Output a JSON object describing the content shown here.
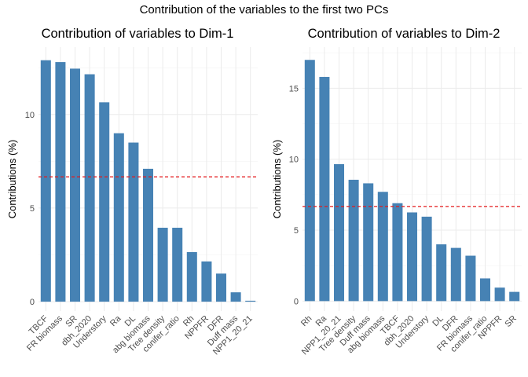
{
  "figure": {
    "suptitle": "Contribution of the variables to the first two PCs"
  },
  "chart_data": [
    {
      "type": "bar",
      "title": "Contribution of variables to Dim-1",
      "xlabel": "",
      "ylabel": "Contributions (%)",
      "categories": [
        "TBCF",
        "FR biomass",
        "SR",
        "dbh_2020",
        "Understory",
        "Ra",
        "DL",
        "abg biomass",
        "Tree density",
        "conifer_ratio",
        "Rh",
        "NPPFR",
        "DFR",
        "Duff mass",
        "NPP1_20_21"
      ],
      "values": [
        12.9,
        12.8,
        12.45,
        12.15,
        10.65,
        9.0,
        8.5,
        7.1,
        3.95,
        3.95,
        2.65,
        2.15,
        1.5,
        0.5,
        0.05
      ],
      "reference_line": 6.67,
      "ylim": [
        -0.5,
        13.6
      ],
      "yticks": [
        0,
        5,
        10
      ],
      "grid": true,
      "colors": {
        "bar": "#4682b4",
        "reference_line": "#e41a1c",
        "grid": "#ebebeb"
      }
    },
    {
      "type": "bar",
      "title": "Contribution of variables to Dim-2",
      "xlabel": "",
      "ylabel": "Contributions (%)",
      "categories": [
        "Rh",
        "Ra",
        "NPP1_20_21",
        "Tree density",
        "Duff mass",
        "abg biomass",
        "TBCF",
        "dbh_2020",
        "Understory",
        "DL",
        "DFR",
        "FR biomass",
        "conifer_ratio",
        "NPPFR",
        "SR"
      ],
      "values": [
        17.0,
        15.8,
        9.65,
        8.55,
        8.3,
        7.7,
        6.9,
        6.25,
        5.95,
        4.0,
        3.75,
        3.2,
        1.6,
        0.95,
        0.65
      ],
      "reference_line": 6.67,
      "ylim": [
        -0.7,
        17.9
      ],
      "yticks": [
        0,
        5,
        10,
        15
      ],
      "grid": true,
      "colors": {
        "bar": "#4682b4",
        "reference_line": "#e41a1c",
        "grid": "#ebebeb"
      }
    }
  ]
}
